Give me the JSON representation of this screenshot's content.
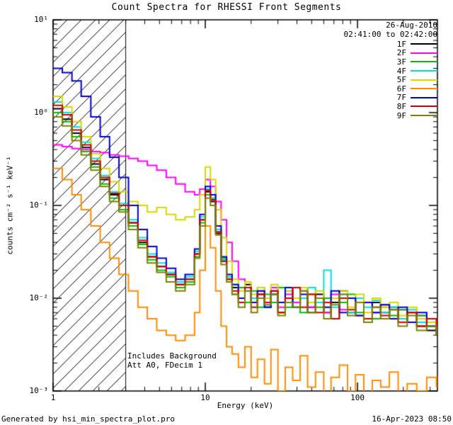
{
  "title": "Count Spectra for RHESSI Front Segments",
  "header": {
    "date": "26-Aug-2010",
    "time_range": "02:41:00 to 02:42:00"
  },
  "axes": {
    "xlabel": "Energy (keV)",
    "ylabel": "counts cm⁻² s⁻¹ keV⁻¹",
    "x_scale": "log",
    "y_scale": "log",
    "x_ticks": [
      {
        "value": 1,
        "label": "1"
      },
      {
        "value": 10,
        "label": "10"
      },
      {
        "value": 100,
        "label": "100"
      }
    ],
    "y_ticks": [
      {
        "value": 0.001,
        "label": "10⁻³"
      },
      {
        "value": 0.01,
        "label": "10⁻²"
      },
      {
        "value": 0.1,
        "label": "10⁻¹"
      },
      {
        "value": 1,
        "label": "10⁰"
      },
      {
        "value": 10,
        "label": "10¹"
      }
    ]
  },
  "annotations": {
    "line1": "Includes Background",
    "line2": "Att A0, FDecim 1"
  },
  "footer": {
    "left": "Generated by hsi_min_spectra_plot.pro",
    "right": "16-Apr-2023 08:50"
  },
  "hatch_region": {
    "x_min": 1,
    "x_max": 3
  },
  "chart_data": {
    "type": "line",
    "line_style": "step",
    "x_scale": "log",
    "y_scale": "log",
    "x_range": [
      1,
      335
    ],
    "y_range": [
      0.001,
      10
    ],
    "xlabel": "Energy (keV)",
    "ylabel": "counts cm^-2 s^-1 keV^-1",
    "title": "Count Spectra for RHESSI Front Segments",
    "legend_position": "top-right",
    "x": [
      1.0,
      1.15,
      1.33,
      1.53,
      1.77,
      2.04,
      2.35,
      2.71,
      3.13,
      3.61,
      4.16,
      4.8,
      5.54,
      6.39,
      7.37,
      8.5,
      9.2,
      10.0,
      10.8,
      11.7,
      12.7,
      13.8,
      15.0,
      16.5,
      18.2,
      20.0,
      22.0,
      24.5,
      27.0,
      30.0,
      33.5,
      37.5,
      42.0,
      47.0,
      53.0,
      60.0,
      67.0,
      76.0,
      86.0,
      97.0,
      110.0,
      125.0,
      142.0,
      162.0,
      185.0,
      212.0,
      245.0,
      285.0,
      330.0
    ],
    "series": [
      {
        "name": "1F",
        "color": "#000000",
        "values": [
          1.1,
          0.85,
          0.6,
          0.42,
          0.28,
          0.19,
          0.13,
          0.1,
          0.065,
          0.04,
          0.028,
          0.022,
          0.018,
          0.014,
          0.016,
          0.03,
          0.07,
          0.14,
          0.11,
          0.05,
          0.025,
          0.016,
          0.013,
          0.01,
          0.014,
          0.009,
          0.011,
          0.008,
          0.012,
          0.007,
          0.01,
          0.009,
          0.013,
          0.008,
          0.011,
          0.007,
          0.009,
          0.012,
          0.007,
          0.01,
          0.006,
          0.009,
          0.007,
          0.008,
          0.006,
          0.007,
          0.005,
          0.0045,
          0.004
        ]
      },
      {
        "name": "2F",
        "color": "#ff00ff",
        "values": [
          0.45,
          0.43,
          0.41,
          0.4,
          0.38,
          0.37,
          0.35,
          0.34,
          0.32,
          0.3,
          0.27,
          0.24,
          0.2,
          0.17,
          0.14,
          0.13,
          0.15,
          0.19,
          0.16,
          0.11,
          0.07,
          0.04,
          0.025,
          0.016,
          0.013,
          0.01,
          0.012,
          0.009,
          0.013,
          0.008,
          0.011,
          0.009,
          0.012,
          0.008,
          0.01,
          0.007,
          0.011,
          0.0075,
          0.01,
          0.0065,
          0.009,
          0.007,
          0.0085,
          0.006,
          0.0075,
          0.0055,
          0.0065,
          0.005,
          0.0045
        ]
      },
      {
        "name": "3F",
        "color": "#00c000",
        "values": [
          1.0,
          0.8,
          0.55,
          0.38,
          0.26,
          0.17,
          0.12,
          0.09,
          0.06,
          0.038,
          0.026,
          0.02,
          0.017,
          0.013,
          0.015,
          0.028,
          0.065,
          0.13,
          0.12,
          0.055,
          0.027,
          0.017,
          0.011,
          0.013,
          0.009,
          0.012,
          0.008,
          0.011,
          0.009,
          0.013,
          0.008,
          0.01,
          0.007,
          0.011,
          0.008,
          0.01,
          0.006,
          0.009,
          0.011,
          0.007,
          0.009,
          0.006,
          0.008,
          0.0065,
          0.0075,
          0.0055,
          0.0065,
          0.005,
          0.0042
        ]
      },
      {
        "name": "4F",
        "color": "#00e0e0",
        "values": [
          1.3,
          1.0,
          0.7,
          0.48,
          0.32,
          0.21,
          0.14,
          0.105,
          0.07,
          0.045,
          0.03,
          0.024,
          0.019,
          0.015,
          0.017,
          0.032,
          0.075,
          0.15,
          0.12,
          0.055,
          0.026,
          0.017,
          0.014,
          0.009,
          0.012,
          0.01,
          0.013,
          0.008,
          0.011,
          0.009,
          0.012,
          0.008,
          0.01,
          0.013,
          0.009,
          0.02,
          0.008,
          0.011,
          0.007,
          0.01,
          0.008,
          0.0095,
          0.007,
          0.008,
          0.006,
          0.0075,
          0.0055,
          0.005,
          0.0045
        ]
      },
      {
        "name": "5F",
        "color": "#d8d800",
        "values": [
          1.5,
          1.15,
          0.8,
          0.55,
          0.36,
          0.25,
          0.18,
          0.14,
          0.11,
          0.1,
          0.085,
          0.095,
          0.08,
          0.07,
          0.075,
          0.09,
          0.13,
          0.26,
          0.19,
          0.09,
          0.045,
          0.025,
          0.016,
          0.012,
          0.015,
          0.011,
          0.013,
          0.01,
          0.014,
          0.009,
          0.012,
          0.01,
          0.013,
          0.009,
          0.012,
          0.008,
          0.01,
          0.012,
          0.008,
          0.011,
          0.007,
          0.01,
          0.008,
          0.009,
          0.0065,
          0.008,
          0.006,
          0.0055,
          0.005
        ]
      },
      {
        "name": "6F",
        "color": "#ff8c00",
        "values": [
          0.25,
          0.19,
          0.13,
          0.09,
          0.06,
          0.04,
          0.027,
          0.018,
          0.012,
          0.008,
          0.006,
          0.0045,
          0.004,
          0.0035,
          0.004,
          0.007,
          0.02,
          0.06,
          0.035,
          0.012,
          0.005,
          0.003,
          0.0025,
          0.0018,
          0.003,
          0.0014,
          0.0022,
          0.0012,
          0.0028,
          0.001,
          0.0018,
          0.0013,
          0.0024,
          0.0011,
          0.0016,
          0.0009,
          0.0014,
          0.0019,
          0.001,
          0.0015,
          0.0008,
          0.0013,
          0.0011,
          0.0016,
          0.0009,
          0.0012,
          0.001,
          0.0014,
          0.0011
        ]
      },
      {
        "name": "7F",
        "color": "#0000d0",
        "values": [
          3.0,
          2.7,
          2.2,
          1.5,
          0.9,
          0.55,
          0.33,
          0.2,
          0.1,
          0.055,
          0.036,
          0.027,
          0.021,
          0.016,
          0.018,
          0.034,
          0.08,
          0.16,
          0.13,
          0.06,
          0.028,
          0.018,
          0.014,
          0.01,
          0.013,
          0.009,
          0.012,
          0.008,
          0.011,
          0.009,
          0.013,
          0.008,
          0.011,
          0.007,
          0.01,
          0.008,
          0.012,
          0.007,
          0.01,
          0.0065,
          0.009,
          0.007,
          0.0085,
          0.006,
          0.008,
          0.0055,
          0.007,
          0.005,
          0.0045
        ]
      },
      {
        "name": "8F",
        "color": "#d00000",
        "values": [
          1.2,
          0.95,
          0.65,
          0.45,
          0.3,
          0.2,
          0.135,
          0.1,
          0.065,
          0.042,
          0.028,
          0.022,
          0.018,
          0.014,
          0.016,
          0.03,
          0.07,
          0.145,
          0.115,
          0.052,
          0.025,
          0.016,
          0.012,
          0.009,
          0.013,
          0.008,
          0.011,
          0.009,
          0.012,
          0.007,
          0.01,
          0.013,
          0.008,
          0.011,
          0.007,
          0.009,
          0.006,
          0.01,
          0.0075,
          0.009,
          0.006,
          0.008,
          0.0065,
          0.0075,
          0.0055,
          0.007,
          0.005,
          0.006,
          0.0042
        ]
      },
      {
        "name": "9F",
        "color": "#808000",
        "values": [
          0.9,
          0.72,
          0.5,
          0.35,
          0.24,
          0.16,
          0.11,
          0.085,
          0.055,
          0.035,
          0.024,
          0.019,
          0.015,
          0.012,
          0.014,
          0.027,
          0.06,
          0.12,
          0.1,
          0.048,
          0.023,
          0.015,
          0.011,
          0.008,
          0.012,
          0.007,
          0.01,
          0.0085,
          0.011,
          0.0065,
          0.009,
          0.008,
          0.012,
          0.007,
          0.01,
          0.006,
          0.0085,
          0.011,
          0.0065,
          0.009,
          0.0055,
          0.008,
          0.006,
          0.0075,
          0.005,
          0.0065,
          0.0045,
          0.005,
          0.004
        ]
      }
    ]
  }
}
